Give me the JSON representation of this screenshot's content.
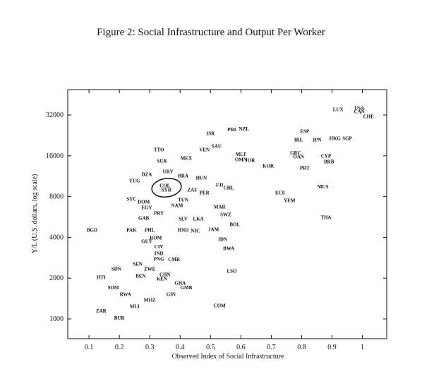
{
  "chart_data": {
    "type": "scatter",
    "title": "Figure 2: Social Infrastructure and Output Per Worker",
    "x_label": "Observed Index of Social Infrastructure",
    "y_label": "Y/L (U.S. dollars, log scale)",
    "log_y": true,
    "grid": false,
    "color": "#111111",
    "xlim": [
      0.03,
      1.08
    ],
    "ylim": [
      715,
      49300
    ],
    "xticks": [
      0.1,
      0.2,
      0.3,
      0.4,
      0.5,
      0.6,
      0.7,
      0.8,
      0.9,
      1
    ],
    "yticks": [
      1000,
      2000,
      4000,
      8000,
      16000,
      32000
    ],
    "labels": [
      "LUX",
      "USA",
      "CAN",
      "CHE",
      "ESP",
      "IRL",
      "JPN",
      "HKG",
      "SGP",
      "CYP",
      "BRB",
      "GRC",
      "OAN",
      "PRT",
      "MUS",
      "ECU",
      "YEM",
      "THA",
      "KOR",
      "PRI",
      "NZL",
      "ISR",
      "SAU",
      "VEN",
      "MLT",
      "OMN",
      "JOR",
      "TTO",
      "SUR",
      "MEX",
      "DZA",
      "URY",
      "BRA",
      "HUN",
      "YUG",
      "FJI",
      "CHL",
      "PER",
      "ZAF",
      "COL",
      "SYR",
      "SYC",
      "DOM",
      "EGY",
      "TUN",
      "NAM",
      "MAR",
      "SWZ",
      "BOL",
      "PRY",
      "GAB",
      "SLV",
      "LKA",
      "BGD",
      "PAK",
      "PHL",
      "HND",
      "NIC",
      "JAM",
      "IDN",
      "ROM",
      "GUY",
      "BWA",
      "CIV",
      "IND",
      "PNG",
      "CMR",
      "SEN",
      "ZWE",
      "SDN",
      "BEN",
      "CHN",
      "KEN",
      "LSO",
      "HTI",
      "SOM",
      "GHA",
      "GMB",
      "RWA",
      "GIN",
      "MOZ",
      "MLI",
      "ZAR",
      "BUR",
      "COM"
    ],
    "x": [
      0.92,
      0.99,
      0.99,
      1.02,
      0.81,
      0.79,
      0.85,
      0.91,
      0.95,
      0.88,
      0.89,
      0.78,
      0.79,
      0.81,
      0.87,
      0.73,
      0.76,
      0.88,
      0.69,
      0.57,
      0.61,
      0.5,
      0.52,
      0.48,
      0.6,
      0.6,
      0.63,
      0.33,
      0.34,
      0.42,
      0.29,
      0.36,
      0.41,
      0.47,
      0.25,
      0.53,
      0.56,
      0.48,
      0.44,
      0.35,
      0.355,
      0.24,
      0.28,
      0.29,
      0.41,
      0.39,
      0.53,
      0.55,
      0.58,
      0.33,
      0.28,
      0.41,
      0.46,
      0.11,
      0.24,
      0.3,
      0.41,
      0.45,
      0.51,
      0.54,
      0.32,
      0.29,
      0.56,
      0.33,
      0.33,
      0.33,
      0.38,
      0.26,
      0.3,
      0.19,
      0.27,
      0.35,
      0.34,
      0.57,
      0.14,
      0.18,
      0.4,
      0.42,
      0.22,
      0.37,
      0.3,
      0.25,
      0.14,
      0.2,
      0.53
    ],
    "y": [
      35200,
      36000,
      34000,
      31300,
      24300,
      21000,
      21000,
      21500,
      21500,
      16000,
      14500,
      16900,
      15800,
      13000,
      9500,
      8550,
      7500,
      5620,
      13500,
      25100,
      25300,
      23400,
      18900,
      17800,
      16500,
      15000,
      14900,
      17800,
      14700,
      15400,
      11700,
      12300,
      11400,
      11000,
      10500,
      9780,
      9300,
      8550,
      8990,
      9650,
      8990,
      7680,
      7310,
      6640,
      7570,
      6900,
      6730,
      5900,
      4990,
      6060,
      5550,
      5500,
      5500,
      4530,
      4530,
      4530,
      4530,
      4480,
      4590,
      3880,
      3970,
      3740,
      3320,
      3430,
      3050,
      2770,
      2750,
      2550,
      2340,
      2340,
      2080,
      2130,
      1980,
      2260,
      2030,
      1710,
      1840,
      1710,
      1520,
      1520,
      1380,
      1240,
      1150,
      1020,
      1260
    ]
  }
}
